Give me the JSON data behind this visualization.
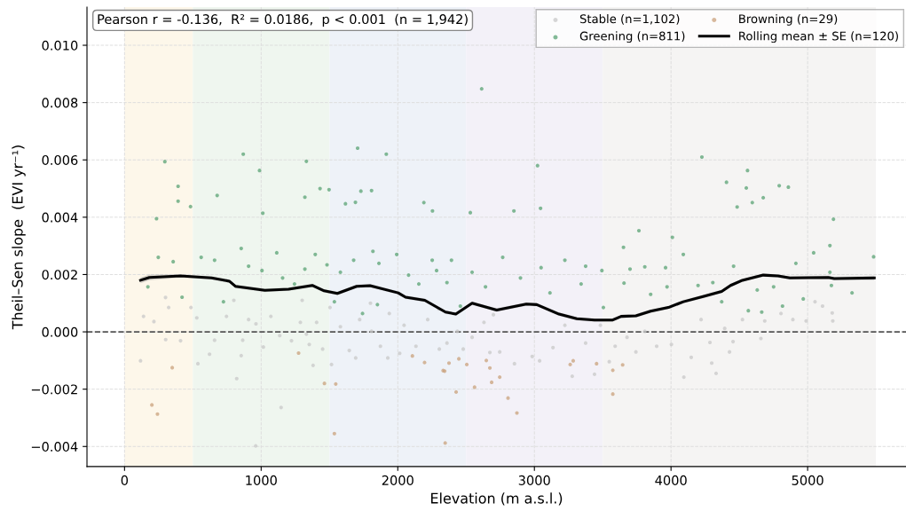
{
  "chart_data": {
    "type": "scatter",
    "xlabel": "Elevation (m a.s.l.)",
    "ylabel": "Theil–Sen slope  (EVI yr⁻¹)",
    "xlim": [
      -275,
      5720
    ],
    "ylim": [
      -0.0047,
      0.01133
    ],
    "xticks": [
      0,
      1000,
      2000,
      3000,
      4000,
      5000
    ],
    "yticks": [
      {
        "value": -0.004,
        "label": "−0.004"
      },
      {
        "value": -0.002,
        "label": "−0.002"
      },
      {
        "value": 0.0,
        "label": "0.000"
      },
      {
        "value": 0.002,
        "label": "0.002"
      },
      {
        "value": 0.004,
        "label": "0.004"
      },
      {
        "value": 0.006,
        "label": "0.006"
      },
      {
        "value": 0.008,
        "label": "0.008"
      },
      {
        "value": 0.01,
        "label": "0.010"
      }
    ],
    "grid": true,
    "legend": "top right",
    "marker": "circle",
    "annotations": [
      "Pearson r = -0.136,  R² = 0.0186,  p < 0.001  (n = 1,942)"
    ],
    "ref_lines": [
      {
        "axis": "y",
        "value": 0,
        "color": "#555555",
        "line_style": "dashed"
      }
    ],
    "bands": [
      {
        "axis": "x",
        "from": 0,
        "to": 500,
        "color": "#fdf7ea"
      },
      {
        "axis": "x",
        "from": 500,
        "to": 1500,
        "color": "#eff6ef"
      },
      {
        "axis": "x",
        "from": 1500,
        "to": 2500,
        "color": "#eef2f8"
      },
      {
        "axis": "x",
        "from": 2500,
        "to": 3500,
        "color": "#f3f1f8"
      },
      {
        "axis": "x",
        "from": 3500,
        "to": 5500,
        "color": "#f5f4f3"
      }
    ],
    "series": [
      {
        "name": "Stable (n=1,102)",
        "color": "#c8c8c8",
        "x": [
          117,
          139,
          301,
          215,
          323,
          410,
          486,
          529,
          537,
          622,
          659,
          746,
          821,
          854,
          865,
          908,
          962,
          960,
          1016,
          1071,
          1136,
          1146,
          1222,
          1287,
          1331,
          1352,
          1380,
          1406,
          1450,
          1504,
          1515,
          1580,
          1645,
          1692,
          1721,
          1808,
          1873,
          1927,
          1938,
          2014,
          2046,
          2133,
          2219,
          2304,
          2360,
          2436,
          2479,
          2544,
          2631,
          2674,
          300,
          800,
          1300,
          1800,
          2300,
          2700,
          2746,
          2854,
          2984,
          3038,
          3136,
          3223,
          3277,
          3375,
          3440,
          3483,
          3548,
          3591,
          3678,
          3743,
          3808,
          3895,
          4003,
          4094,
          4148,
          4220,
          4285,
          4298,
          4330,
          4393,
          4428,
          4454,
          4523,
          4658,
          4686,
          4805,
          4892,
          4989,
          5054,
          5109,
          5184,
          5180
        ],
        "values": [
          -0.00101,
          0.00054,
          -0.00027,
          0.00036,
          0.00085,
          -0.00031,
          0.00085,
          0.00049,
          -0.00111,
          -0.00078,
          -0.00029,
          0.00054,
          -0.00163,
          -0.00083,
          -0.00029,
          0.00043,
          0.00028,
          -0.00398,
          -0.00053,
          0.00054,
          -0.00013,
          -0.00264,
          -0.00031,
          0.00033,
          -8e-05,
          -0.00044,
          -0.00117,
          0.00033,
          -0.0006,
          0.00085,
          -0.00114,
          0.00018,
          -0.00065,
          -0.00091,
          0.00043,
          2e-05,
          -0.0005,
          -0.00091,
          0.00064,
          -0.00075,
          0.00023,
          -0.0005,
          0.00043,
          -0.0006,
          -0.00039,
          2e-05,
          -0.0006,
          -0.00019,
          0.00033,
          -0.00072,
          0.0012,
          0.0011,
          0.0011,
          0.001,
          0.0008,
          0.0006,
          -0.0007,
          -0.00111,
          -0.00086,
          -0.00101,
          -0.00055,
          0.00023,
          -0.00155,
          -0.00039,
          -0.00148,
          0.00023,
          -0.00104,
          -0.0005,
          -0.00019,
          -0.0007,
          2e-05,
          -0.0005,
          -0.00044,
          -0.00158,
          -0.00089,
          0.00043,
          -0.00037,
          -0.00109,
          -0.00145,
          0.00012,
          -0.0007,
          -0.00034,
          0.00043,
          -0.00023,
          0.00038,
          0.00064,
          0.00043,
          0.00038,
          0.00105,
          0.0009,
          0.00038,
          0.00066
        ]
      },
      {
        "name": "Greening (n=811)",
        "color": "#5aa374",
        "x": [
          295,
          392,
          392,
          483,
          234,
          869,
          988,
          678,
          1331,
          1320,
          1431,
          1497,
          1706,
          1916,
          1730,
          1808,
          2191,
          2254,
          2614,
          2531,
          1617,
          1690,
          1012,
          3023,
          3045,
          2850,
          4226,
          4560,
          4406,
          4551,
          4792,
          4859,
          4675,
          4595,
          4484,
          5189,
          3765,
          3652,
          4010,
          5483,
          5163,
          247,
          356,
          171,
          421,
          561,
          659,
          724,
          854,
          908,
          1006,
          1114,
          1157,
          1244,
          1320,
          1396,
          1482,
          1536,
          1580,
          1677,
          1742,
          1818,
          1862,
          1851,
          1992,
          2079,
          2154,
          2252,
          2284,
          2360,
          2458,
          2393,
          2544,
          2642,
          2768,
          2898,
          3049,
          3114,
          3223,
          3342,
          3375,
          3494,
          3505,
          3656,
          3700,
          3808,
          3851,
          3960,
          3971,
          4090,
          4198,
          4306,
          4371,
          4458,
          4566,
          4631,
          4664,
          4751,
          4816,
          4914,
          4968,
          5044,
          5163,
          5174,
          5325
        ],
        "values": [
          0.00594,
          0.00508,
          0.00456,
          0.00437,
          0.00395,
          0.0062,
          0.00563,
          0.00476,
          0.00595,
          0.0047,
          0.005,
          0.00496,
          0.00641,
          0.0062,
          0.00491,
          0.00493,
          0.00451,
          0.00422,
          0.00848,
          0.00416,
          0.00447,
          0.00452,
          0.00414,
          0.0058,
          0.00431,
          0.00422,
          0.0061,
          0.00563,
          0.00522,
          0.00502,
          0.0051,
          0.00505,
          0.00468,
          0.00451,
          0.00436,
          0.00393,
          0.00353,
          0.00295,
          0.0033,
          0.00262,
          0.00301,
          0.0026,
          0.00245,
          0.00157,
          0.00121,
          0.0026,
          0.0025,
          0.00105,
          0.00291,
          0.00229,
          0.00214,
          0.00276,
          0.00188,
          0.00167,
          0.00219,
          0.0027,
          0.00234,
          0.00105,
          0.00208,
          0.0025,
          0.00064,
          0.00281,
          0.00239,
          0.00095,
          0.0027,
          0.00198,
          0.00167,
          0.0025,
          0.00214,
          0.00172,
          0.0009,
          0.0025,
          0.00208,
          0.00157,
          0.0026,
          0.00188,
          0.00224,
          0.00136,
          0.0025,
          0.00167,
          0.00229,
          0.00214,
          0.00085,
          0.0017,
          0.00219,
          0.00227,
          0.00131,
          0.00224,
          0.00157,
          0.0027,
          0.00162,
          0.00172,
          0.00105,
          0.00229,
          0.00074,
          0.00146,
          0.00069,
          0.00157,
          0.0009,
          0.00239,
          0.00115,
          0.00276,
          0.00208,
          0.00162,
          0.00136
        ]
      },
      {
        "name": "Browning (n=29)",
        "color": "#c9a27c",
        "x": [
          349,
          200,
          241,
          1274,
          1463,
          1546,
          1536,
          2107,
          2196,
          2332,
          2343,
          2375,
          2347,
          2427,
          2447,
          2505,
          2562,
          2648,
          2674,
          2687,
          2746,
          2807,
          2872,
          3262,
          3284,
          3455,
          3574,
          3646,
          3574
        ],
        "values": [
          -0.00125,
          -0.00255,
          -0.00287,
          -0.00074,
          -0.0018,
          -0.00182,
          -0.00355,
          -0.00084,
          -0.00107,
          -0.00135,
          -0.00137,
          -0.00109,
          -0.00388,
          -0.0021,
          -0.00094,
          -0.00114,
          -0.00193,
          -0.001,
          -0.00126,
          -0.00176,
          -0.00158,
          -0.00231,
          -0.00283,
          -0.00114,
          -0.00101,
          -0.00111,
          -0.00134,
          -0.00115,
          -0.00217
        ]
      },
      {
        "name": "Rolling mean ± SE (n=120)",
        "type": "line",
        "marker": "none",
        "color": "#000000",
        "x": [
          117,
          182,
          410,
          637,
          767,
          811,
          1027,
          1201,
          1374,
          1461,
          1558,
          1699,
          1797,
          2003,
          2057,
          2198,
          2349,
          2425,
          2544,
          2724,
          2941,
          3017,
          3180,
          3310,
          3440,
          3570,
          3635,
          3743,
          3851,
          3981,
          4090,
          4241,
          4371,
          4436,
          4523,
          4675,
          4783,
          4870,
          5151,
          5195,
          5488
        ],
        "values": [
          0.0018,
          0.0019,
          0.00195,
          0.00188,
          0.00177,
          0.00159,
          0.00145,
          0.00149,
          0.00162,
          0.00143,
          0.00134,
          0.00159,
          0.00161,
          0.00136,
          0.00121,
          0.0011,
          0.00069,
          0.00062,
          0.001,
          0.00076,
          0.00097,
          0.00095,
          0.00062,
          0.00046,
          0.00041,
          0.00041,
          0.00054,
          0.00056,
          0.00072,
          0.00085,
          0.00105,
          0.00124,
          0.00141,
          0.00162,
          0.0018,
          0.00198,
          0.00195,
          0.00188,
          0.0019,
          0.00186,
          0.00188
        ],
        "lower": [
          0.0017,
          0.0018,
          0.00189,
          0.00182,
          0.00171,
          0.00153,
          0.00139,
          0.00143,
          0.00156,
          0.00137,
          0.00128,
          0.00153,
          0.00155,
          0.0013,
          0.00115,
          0.00104,
          0.00063,
          0.00056,
          0.00094,
          0.0007,
          0.00091,
          0.00089,
          0.00056,
          0.0004,
          0.00035,
          0.00035,
          0.00048,
          0.0005,
          0.00066,
          0.00079,
          0.00099,
          0.00118,
          0.00135,
          0.00156,
          0.00174,
          0.00192,
          0.00189,
          0.00182,
          0.00184,
          0.0018,
          0.0018
        ],
        "upper": [
          0.0019,
          0.002,
          0.00201,
          0.00194,
          0.00183,
          0.00165,
          0.00151,
          0.00155,
          0.00168,
          0.00149,
          0.0014,
          0.00165,
          0.00167,
          0.00142,
          0.00127,
          0.00116,
          0.00075,
          0.00068,
          0.00106,
          0.00082,
          0.00103,
          0.00101,
          0.00068,
          0.00052,
          0.00047,
          0.00047,
          0.0006,
          0.00062,
          0.00078,
          0.00091,
          0.00111,
          0.0013,
          0.00147,
          0.00168,
          0.00186,
          0.00204,
          0.00201,
          0.00194,
          0.00196,
          0.00192,
          0.00196
        ]
      }
    ]
  }
}
